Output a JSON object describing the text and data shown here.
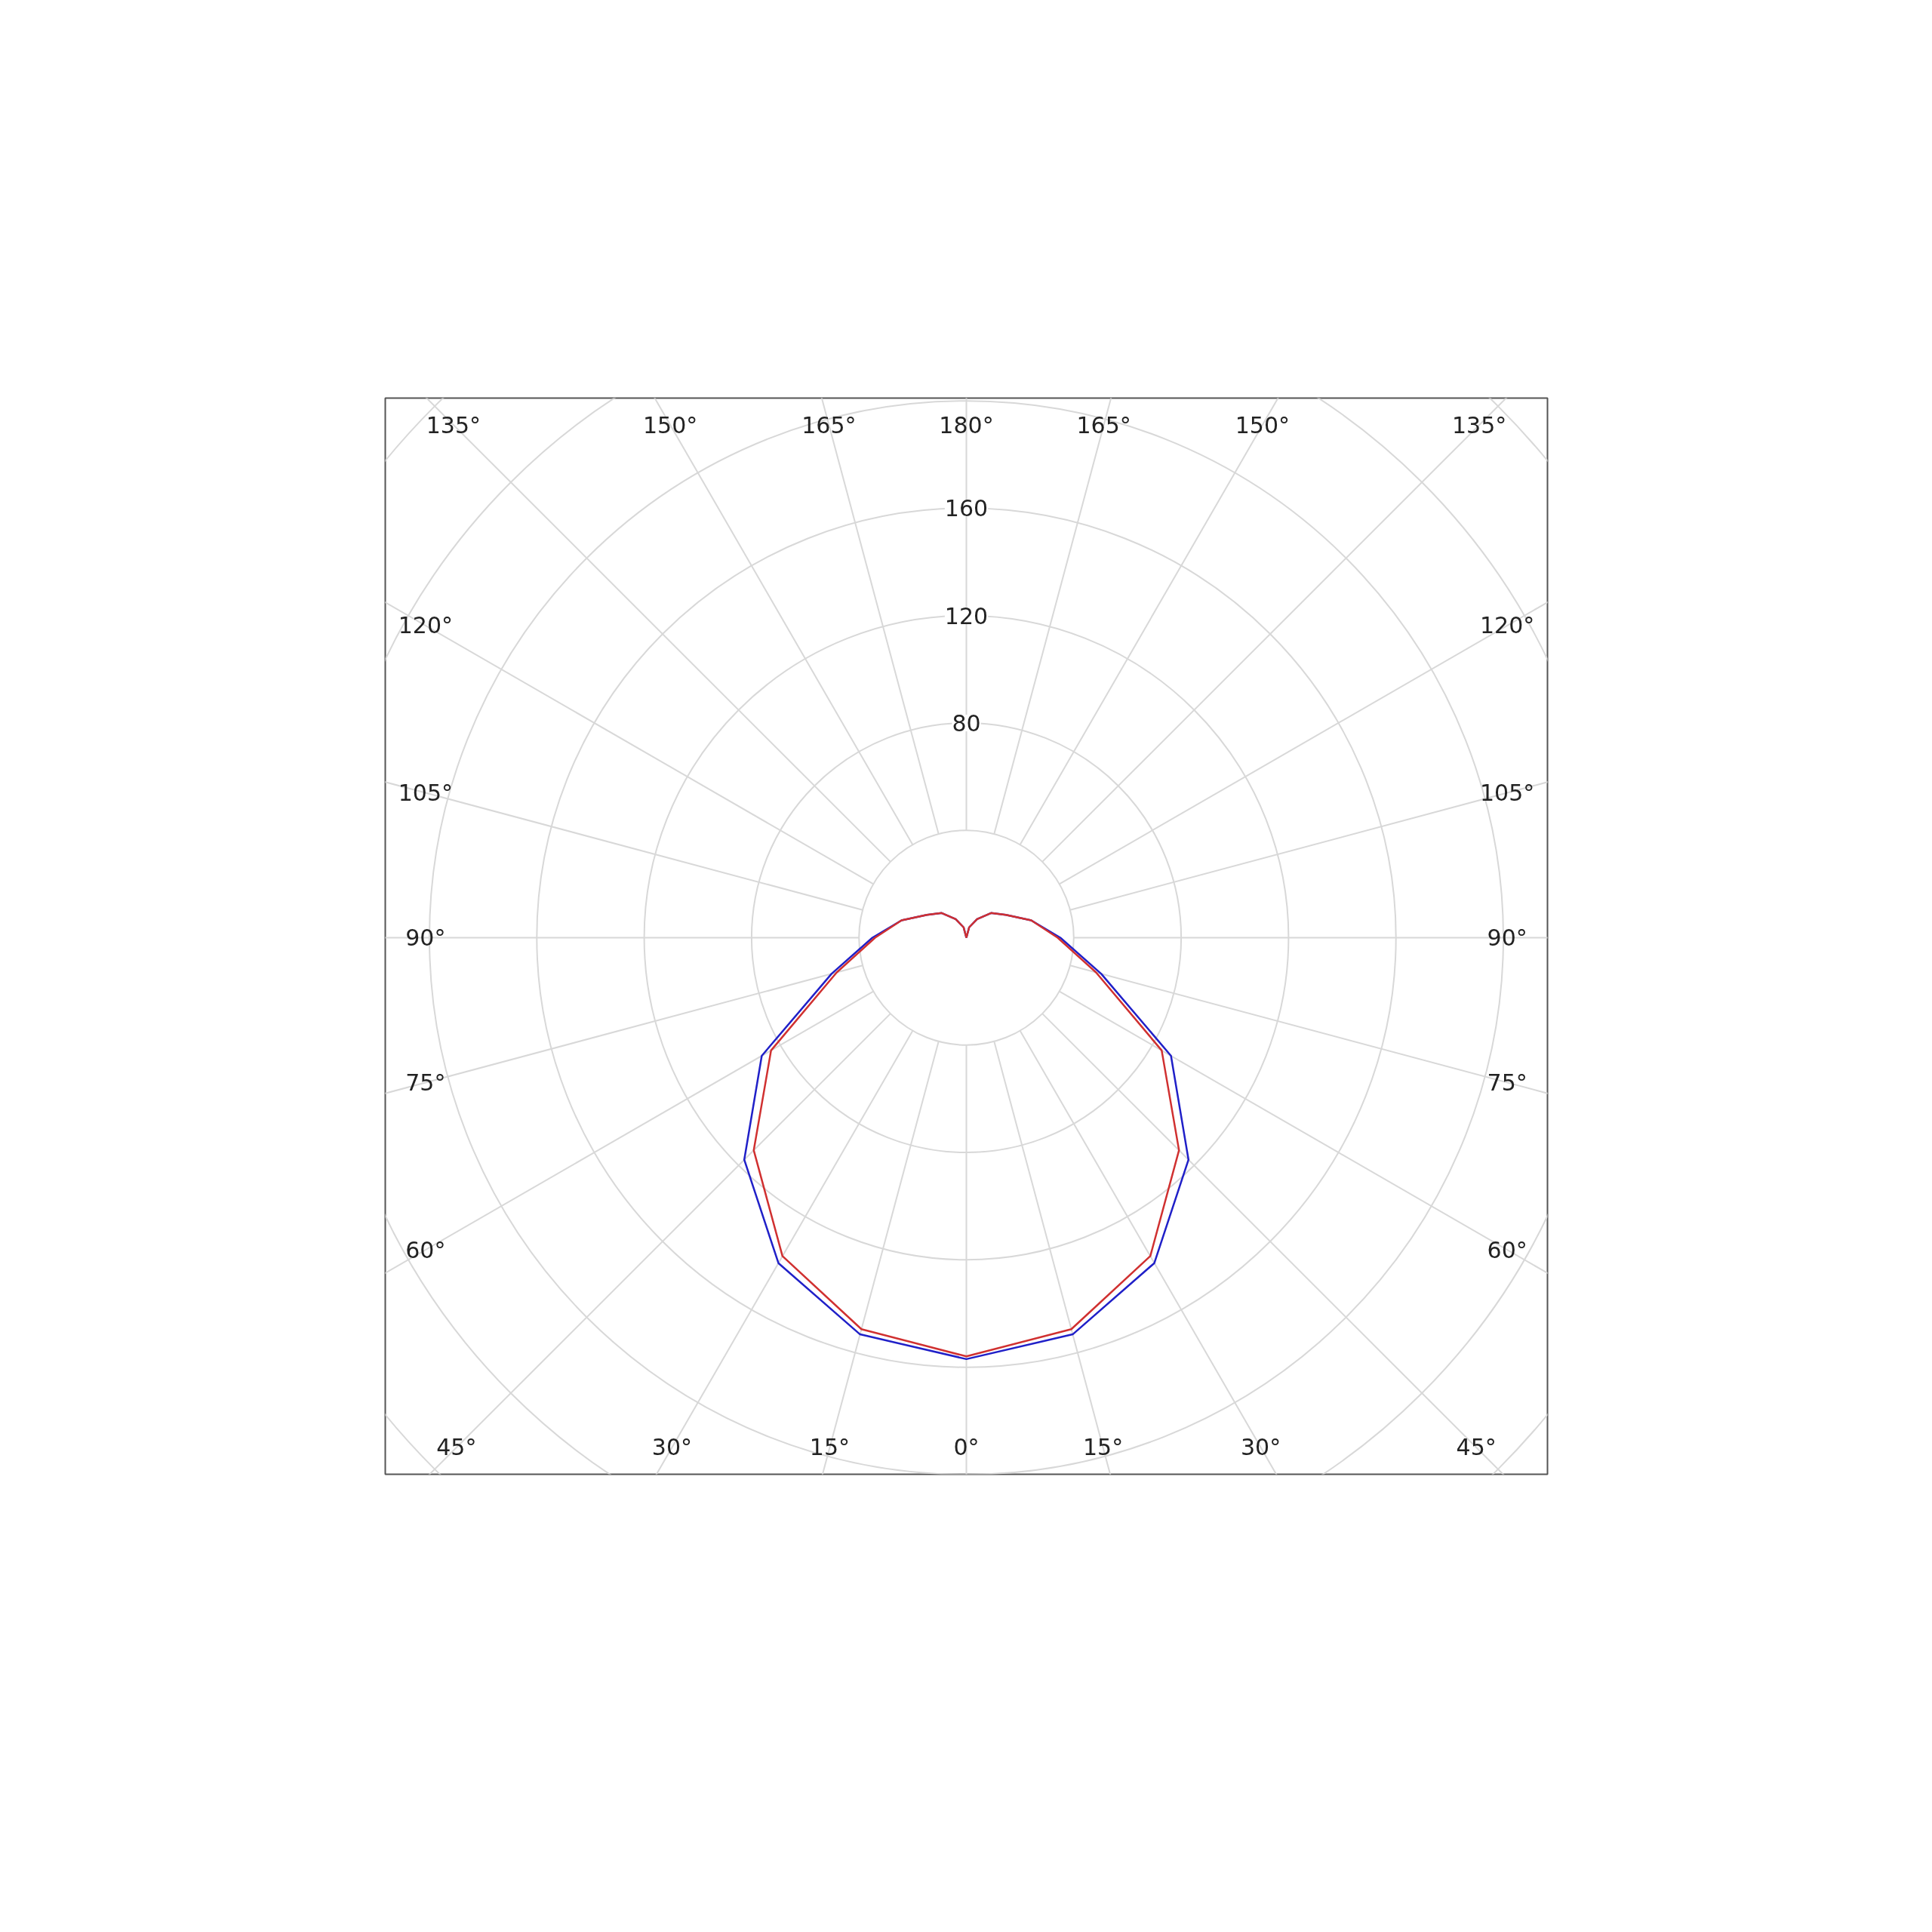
{
  "chart_data": {
    "type": "radar",
    "categories": [
      "180°",
      "165°",
      "150°",
      "135°",
      "120°",
      "105°",
      "90°",
      "75°",
      "60°",
      "45°",
      "30°",
      "15°",
      "0°",
      "15°",
      "30°",
      "45°",
      "60°",
      "75°",
      "90°",
      "105°",
      "120°",
      "135°",
      "150°",
      "165°"
    ],
    "series": [
      {
        "color": "#2020c8",
        "values": [
          0,
          4,
          8,
          13,
          17,
          25,
          35,
          52,
          88,
          117,
          140,
          153,
          157,
          153,
          140,
          117,
          88,
          52,
          35,
          25,
          17,
          13,
          8,
          4
        ]
      },
      {
        "color": "#d03030",
        "values": [
          0,
          4,
          8,
          13,
          17,
          25,
          34,
          50,
          84,
          112,
          137,
          151,
          156,
          151,
          137,
          112,
          84,
          50,
          34,
          25,
          17,
          13,
          8,
          4
        ]
      }
    ],
    "ylim": [
      0,
      280
    ],
    "yticks": [
      80,
      120,
      160
    ],
    "grid": true,
    "marker": "none"
  }
}
